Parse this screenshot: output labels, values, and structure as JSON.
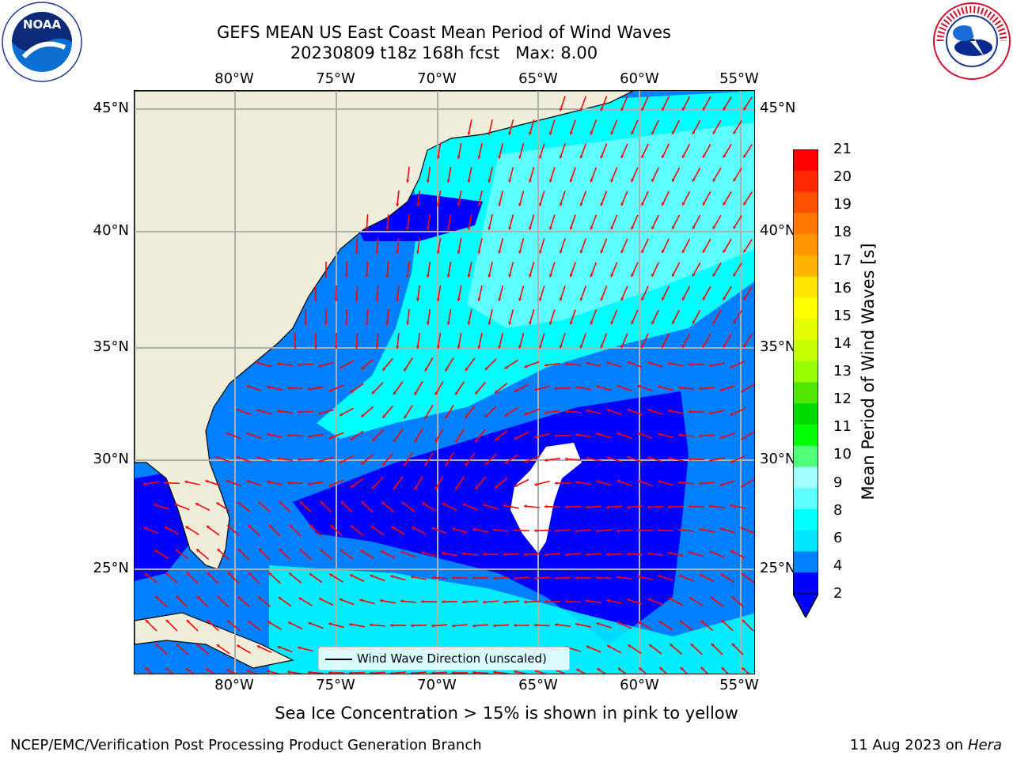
{
  "header": {
    "title_line1": "GEFS MEAN US East Coast Mean Period of Wind Waves",
    "title_line2": "20230809 t18z 168h fcst   Max: 8.00"
  },
  "logos": {
    "noaa_text": "NOAA",
    "noaa_ring_text": "NATIONAL OCEANIC AND ATMOSPHERIC ADMINISTRATION · U.S. DEPARTMENT OF COMMERCE",
    "nws_ring_text": "NATIONAL WEATHER SERVICE"
  },
  "map": {
    "lon_labels": [
      "80°W",
      "75°W",
      "70°W",
      "65°W",
      "60°W",
      "55°W"
    ],
    "lat_labels": [
      "45°N",
      "40°N",
      "35°N",
      "30°N",
      "25°N"
    ],
    "legend_label": "Wind Wave Direction (unscaled)",
    "colors": {
      "land": "#efeedb",
      "grid": "#b0b0b0",
      "arrow": "#ff0000"
    }
  },
  "colorbar": {
    "label": "Mean Period of Wind Waves [s]",
    "ticks": [
      "21",
      "20",
      "19",
      "18",
      "17",
      "16",
      "15",
      "14",
      "13",
      "12",
      "11",
      "10",
      "9",
      "8",
      "6",
      "4",
      "2"
    ],
    "colors": [
      "#ff0000",
      "#ff2800",
      "#ff5000",
      "#ff7800",
      "#ff9600",
      "#ffb400",
      "#ffe600",
      "#ffff00",
      "#e6ff00",
      "#c8ff00",
      "#96ff00",
      "#50e600",
      "#00dc00",
      "#00ff00",
      "#50ff78",
      "#a0ffff",
      "#60ffff",
      "#00ffff",
      "#00e6ff",
      "#0080ff",
      "#0000ff"
    ],
    "extend_color": "#0000ff"
  },
  "footer": {
    "note": "Sea Ice Concentration > 15% is shown in pink to yellow",
    "branch": "NCEP/EMC/Verification Post Processing Product Generation Branch",
    "date": "11 Aug 2023 on",
    "host": "Hera"
  }
}
